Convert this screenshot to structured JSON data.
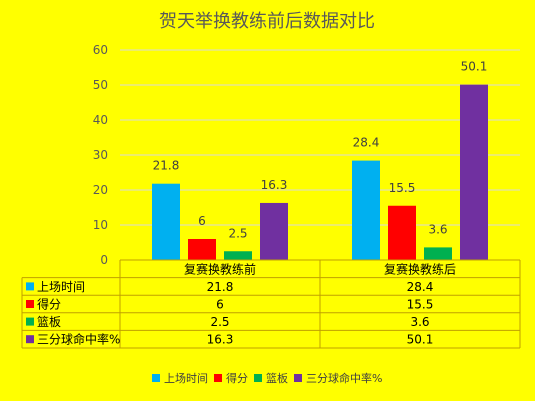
{
  "chart_data": {
    "type": "bar",
    "title": "贺天举换教练前后数据对比",
    "categories": [
      "复赛换教练前",
      "复赛换教练后"
    ],
    "series": [
      {
        "name": "上场时间",
        "color": "#00b0f0",
        "values": [
          21.8,
          28.4
        ]
      },
      {
        "name": "得分",
        "color": "#ff0000",
        "values": [
          6,
          15.5
        ]
      },
      {
        "name": "篮板",
        "color": "#00b050",
        "values": [
          2.5,
          3.6
        ]
      },
      {
        "name": "三分球命中率%",
        "color": "#7030a0",
        "values": [
          16.3,
          50.1
        ]
      }
    ],
    "ylim": [
      0,
      60
    ],
    "yticks": [
      0,
      10,
      20,
      30,
      40,
      50,
      60
    ],
    "grid": true,
    "data_table": true,
    "legend": "bottom"
  }
}
